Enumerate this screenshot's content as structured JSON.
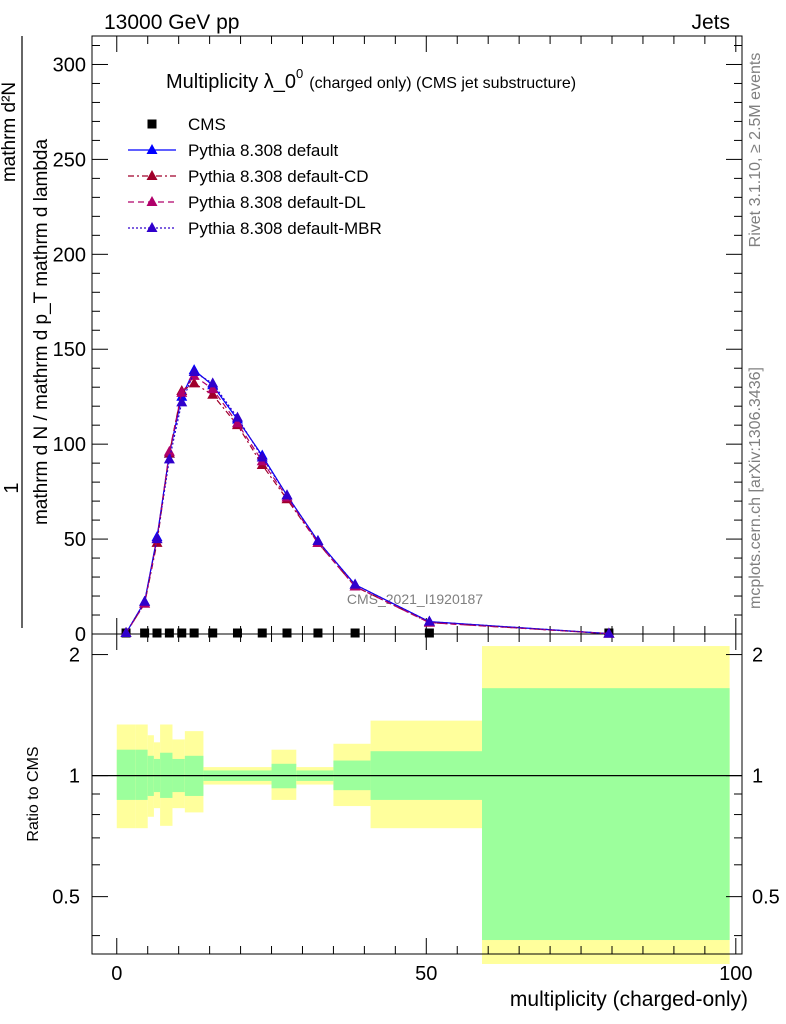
{
  "header": {
    "left": "13000 GeV pp",
    "right": "Jets"
  },
  "side_labels": {
    "rivet": "Rivet 3.1.10, ≥ 2.5M events",
    "mcplots": "mcplots.cern.ch [arXiv:1306.3436]"
  },
  "watermark": "CMS_2021_I1920187",
  "colors": {
    "cms": "#000000",
    "default": "#0000ff",
    "cd": "#a0002a",
    "dl": "#b0006a",
    "mbr": "#3000cc",
    "band_inner": "#9cff9c",
    "band_outer": "#ffff9c"
  },
  "chart_data": {
    "type": "line",
    "title": "Multiplicity λ_0⁰ (charged only) (CMS jet substructure)",
    "title_main": "Multiplicity λ_0",
    "title_sup": "0",
    "title_small": "(charged only) (CMS jet substructure)",
    "ylabel_top": "1",
    "ylabel_den": "mathrm d N / mathrm d p_T mathrm d lambda",
    "ylabel_num": "mathrm d²N",
    "xlabel": "multiplicity (charged-only)",
    "ratio_ylabel": "Ratio to CMS",
    "xlim": [
      -4,
      101
    ],
    "ylim": [
      0,
      315
    ],
    "ratio_ylim": [
      0.36,
      2.25
    ],
    "ratio_log": true,
    "xticks": [
      0,
      50,
      100
    ],
    "yticks": [
      0,
      50,
      100,
      150,
      200,
      250,
      300
    ],
    "ratio_yticks": [
      0.5,
      1,
      2
    ],
    "legend": [
      "CMS",
      "Pythia 8.308 default",
      "Pythia 8.308 default-CD",
      "Pythia 8.308 default-DL",
      "Pythia 8.308 default-MBR"
    ],
    "legend_placement": "top-left",
    "x": [
      1.5,
      4.5,
      6.5,
      8.5,
      10.5,
      12.5,
      15.5,
      19.5,
      23.5,
      27.5,
      32.5,
      38.5,
      50.5,
      79.5
    ],
    "series": [
      {
        "name": "CMS",
        "values": [
          0,
          0,
          0,
          0,
          0,
          0,
          0,
          0,
          0,
          0,
          0,
          0,
          0,
          0
        ]
      },
      {
        "name": "Pythia 8.308 default",
        "values": [
          0.5,
          17,
          51,
          95,
          125,
          139,
          131,
          113,
          94,
          73,
          49,
          26,
          6.5,
          0.2
        ]
      },
      {
        "name": "Pythia 8.308 default-CD",
        "values": [
          0.5,
          16,
          48,
          95,
          128,
          132,
          126,
          110,
          89,
          71,
          48,
          25,
          6,
          0.2
        ]
      },
      {
        "name": "Pythia 8.308 default-DL",
        "values": [
          0.5,
          16,
          50,
          96,
          127,
          136,
          129,
          111,
          91,
          72,
          48,
          25,
          6,
          0.2
        ]
      },
      {
        "name": "Pythia 8.308 default-MBR",
        "values": [
          0.5,
          17,
          50,
          92,
          122,
          138,
          132,
          114,
          93,
          73,
          49,
          26,
          6.5,
          0.2
        ]
      }
    ],
    "ratio_bands": [
      {
        "x0": 0,
        "x1": 3,
        "inner": [
          0.87,
          1.16
        ],
        "outer": [
          0.74,
          1.34
        ]
      },
      {
        "x0": 3,
        "x1": 5,
        "inner": [
          0.87,
          1.16
        ],
        "outer": [
          0.74,
          1.34
        ]
      },
      {
        "x0": 5,
        "x1": 6,
        "inner": [
          0.89,
          1.12
        ],
        "outer": [
          0.79,
          1.26
        ]
      },
      {
        "x0": 6,
        "x1": 7,
        "inner": [
          0.91,
          1.1
        ],
        "outer": [
          0.83,
          1.21
        ]
      },
      {
        "x0": 7,
        "x1": 9,
        "inner": [
          0.88,
          1.14
        ],
        "outer": [
          0.75,
          1.34
        ]
      },
      {
        "x0": 9,
        "x1": 11,
        "inner": [
          0.91,
          1.1
        ],
        "outer": [
          0.83,
          1.23
        ]
      },
      {
        "x0": 11,
        "x1": 14,
        "inner": [
          0.89,
          1.12
        ],
        "outer": [
          0.81,
          1.29
        ]
      },
      {
        "x0": 14,
        "x1": 25,
        "inner": [
          0.97,
          1.03
        ],
        "outer": [
          0.95,
          1.05
        ]
      },
      {
        "x0": 25,
        "x1": 29,
        "inner": [
          0.93,
          1.07
        ],
        "outer": [
          0.87,
          1.16
        ]
      },
      {
        "x0": 29,
        "x1": 35,
        "inner": [
          0.97,
          1.03
        ],
        "outer": [
          0.95,
          1.05
        ]
      },
      {
        "x0": 35,
        "x1": 41,
        "inner": [
          0.92,
          1.09
        ],
        "outer": [
          0.84,
          1.2
        ]
      },
      {
        "x0": 41,
        "x1": 59,
        "inner": [
          0.87,
          1.15
        ],
        "outer": [
          0.74,
          1.37
        ]
      },
      {
        "x0": 59,
        "x1": 99,
        "inner": [
          0.39,
          1.65
        ],
        "outer": [
          0.34,
          2.1
        ]
      }
    ]
  }
}
